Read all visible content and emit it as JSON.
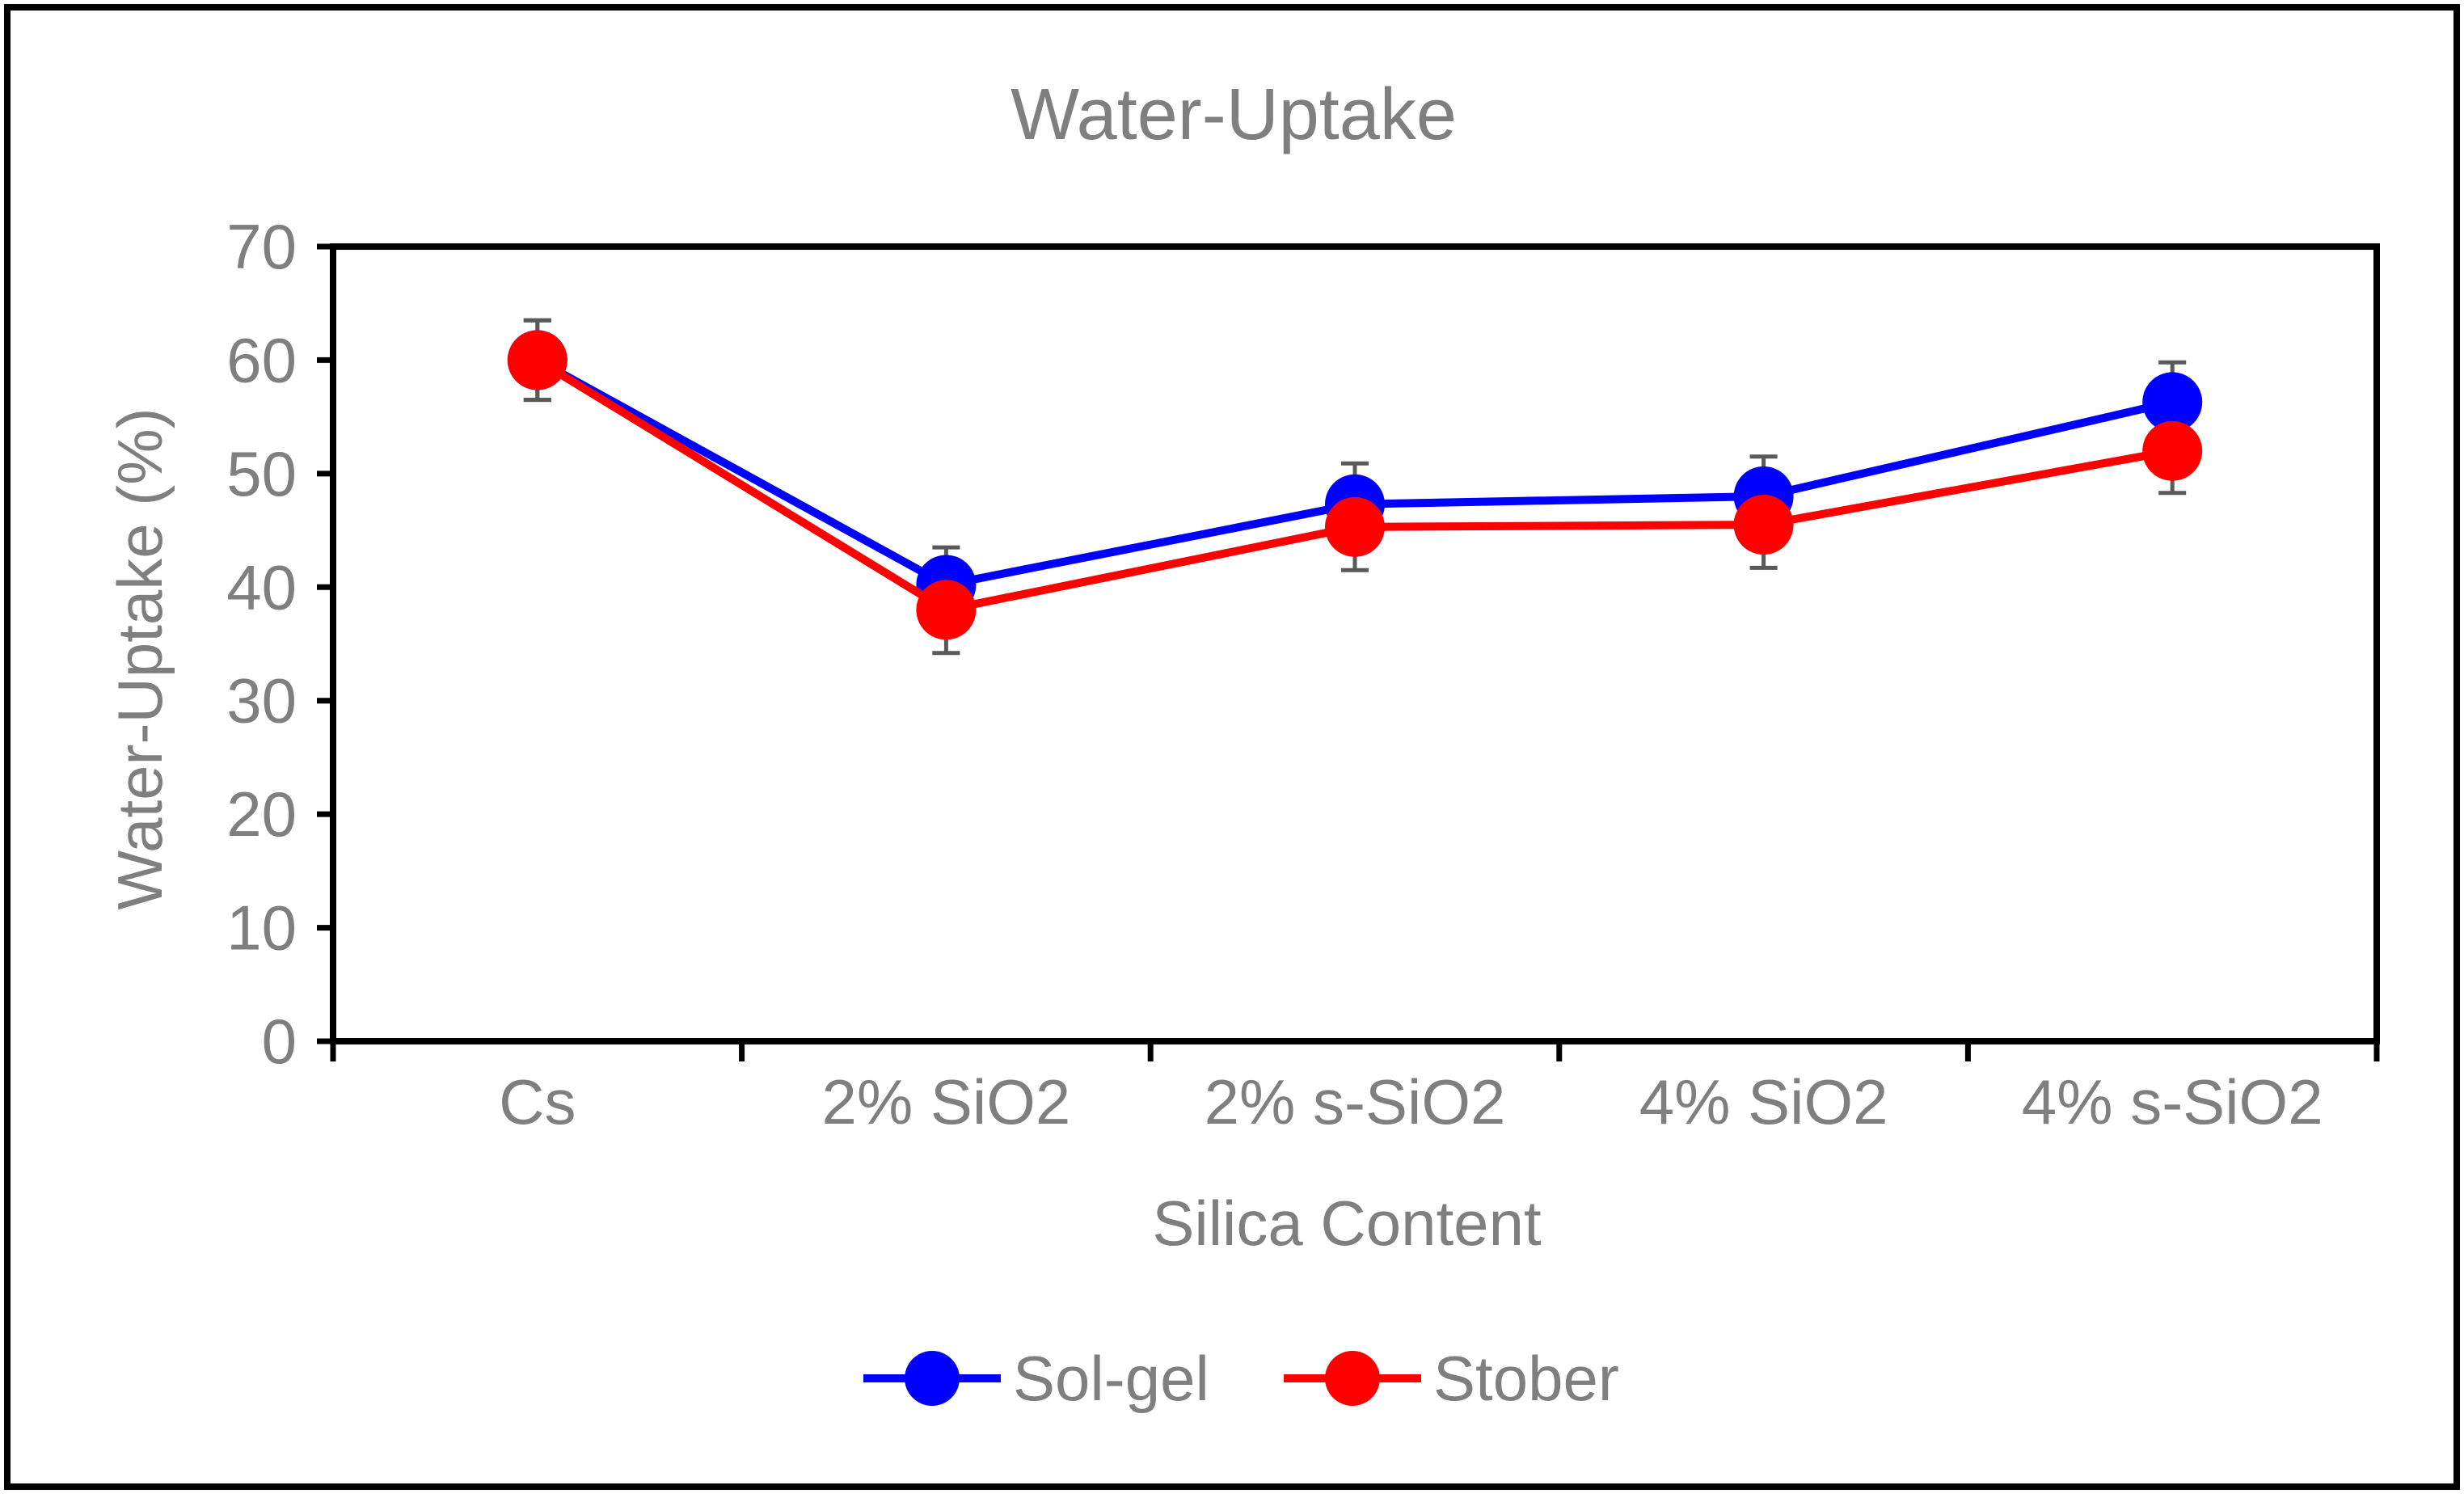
{
  "chart_data": {
    "type": "line",
    "title": "Water-Uptake",
    "xlabel": "Silica Content",
    "ylabel": "Water-Uptake (%)",
    "categories": [
      "Cs",
      "2% SiO2",
      "2% s-SiO2",
      "4% SiO2",
      "4% s-SiO2"
    ],
    "ylim": [
      0,
      70
    ],
    "yticks": [
      0,
      10,
      20,
      30,
      40,
      50,
      60,
      70
    ],
    "grid": false,
    "legend_position": "bottom-center",
    "series": [
      {
        "name": "Sol-gel",
        "color": "#0000ff",
        "values": [
          60.0,
          40.2,
          47.3,
          48.0,
          56.3
        ],
        "errors": [
          3.5,
          3.3,
          3.6,
          3.5,
          3.5
        ]
      },
      {
        "name": "Stober",
        "color": "#ff0000",
        "values": [
          60.0,
          38.0,
          45.3,
          45.5,
          52.0
        ],
        "errors": [
          3.5,
          3.8,
          3.8,
          3.8,
          3.7
        ]
      }
    ]
  }
}
